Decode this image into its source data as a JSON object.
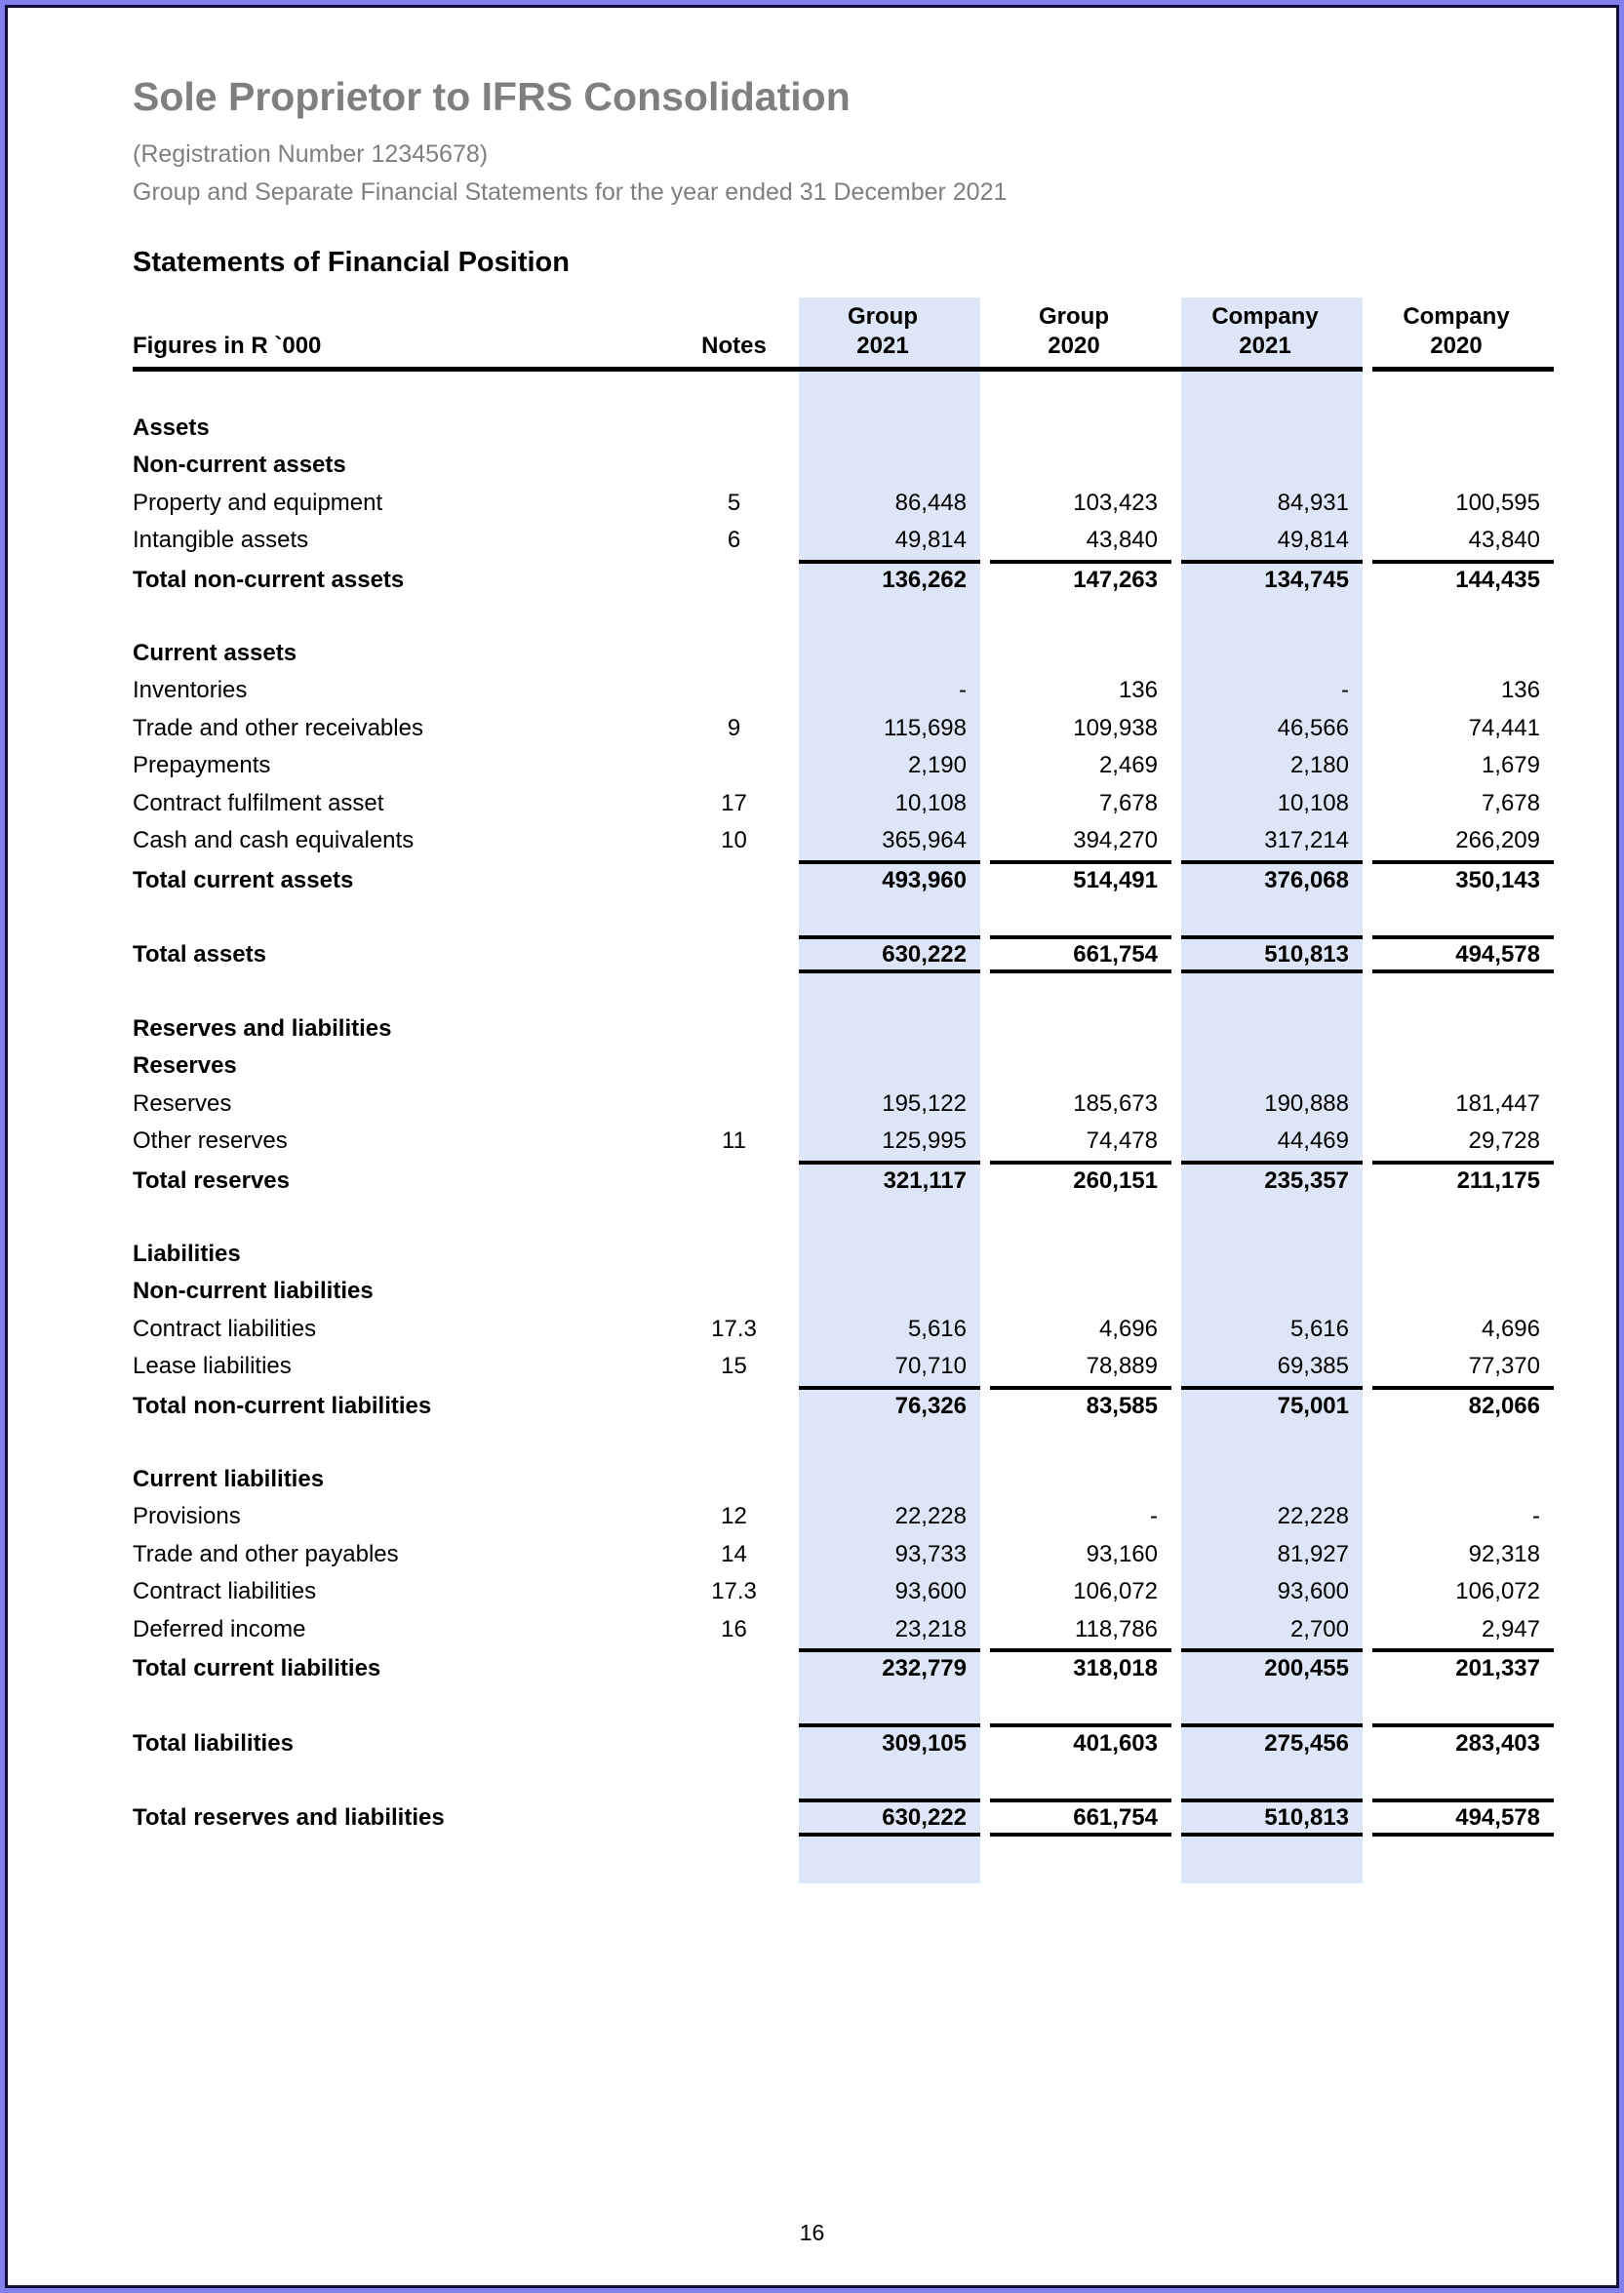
{
  "page": {
    "title": "Sole Proprietor to IFRS Consolidation",
    "registration": "(Registration Number 12345678)",
    "subtitle": "Group and Separate Financial Statements for the year ended 31 December 2021",
    "section_heading": "Statements of Financial Position",
    "page_number": "16"
  },
  "table": {
    "figures_label": "Figures in R `000",
    "notes_label": "Notes",
    "column_groups": [
      "Group",
      "Group",
      "Company",
      "Company"
    ],
    "column_years": [
      "2021",
      "2020",
      "2021",
      "2020"
    ],
    "rows": [
      {
        "t": "spacer"
      },
      {
        "t": "heading",
        "label": "Assets"
      },
      {
        "t": "heading",
        "label": "Non-current assets"
      },
      {
        "t": "item",
        "label": "Property and equipment",
        "note": "5",
        "v": [
          "86,448",
          "103,423",
          "84,931",
          "100,595"
        ]
      },
      {
        "t": "item",
        "label": "Intangible assets",
        "note": "6",
        "v": [
          "49,814",
          "43,840",
          "49,814",
          "43,840"
        ]
      },
      {
        "t": "total",
        "label": "Total non-current assets",
        "note": "",
        "v": [
          "136,262",
          "147,263",
          "134,745",
          "144,435"
        ]
      },
      {
        "t": "spacer"
      },
      {
        "t": "heading",
        "label": "Current assets"
      },
      {
        "t": "item",
        "label": "Inventories",
        "note": "",
        "v": [
          "-",
          "136",
          "-",
          "136"
        ]
      },
      {
        "t": "item",
        "label": "Trade and other receivables",
        "note": "9",
        "v": [
          "115,698",
          "109,938",
          "46,566",
          "74,441"
        ]
      },
      {
        "t": "item",
        "label": "Prepayments",
        "note": "",
        "v": [
          "2,190",
          "2,469",
          "2,180",
          "1,679"
        ]
      },
      {
        "t": "item",
        "label": "Contract fulfilment asset",
        "note": "17",
        "v": [
          "10,108",
          "7,678",
          "10,108",
          "7,678"
        ]
      },
      {
        "t": "item",
        "label": "Cash and cash equivalents",
        "note": "10",
        "v": [
          "365,964",
          "394,270",
          "317,214",
          "266,209"
        ]
      },
      {
        "t": "total",
        "label": "Total current assets",
        "note": "",
        "v": [
          "493,960",
          "514,491",
          "376,068",
          "350,143"
        ]
      },
      {
        "t": "spacer"
      },
      {
        "t": "grand",
        "label": "Total assets",
        "note": "",
        "v": [
          "630,222",
          "661,754",
          "510,813",
          "494,578"
        ]
      },
      {
        "t": "spacer"
      },
      {
        "t": "heading",
        "label": "Reserves and liabilities"
      },
      {
        "t": "heading",
        "label": "Reserves"
      },
      {
        "t": "item",
        "label": "Reserves",
        "note": "",
        "v": [
          "195,122",
          "185,673",
          "190,888",
          "181,447"
        ]
      },
      {
        "t": "item",
        "label": "Other reserves",
        "note": "11",
        "v": [
          "125,995",
          "74,478",
          "44,469",
          "29,728"
        ]
      },
      {
        "t": "total",
        "label": "Total reserves",
        "note": "",
        "v": [
          "321,117",
          "260,151",
          "235,357",
          "211,175"
        ]
      },
      {
        "t": "spacer"
      },
      {
        "t": "heading",
        "label": "Liabilities"
      },
      {
        "t": "heading",
        "label": "Non-current liabilities"
      },
      {
        "t": "item",
        "label": "Contract liabilities",
        "note": "17.3",
        "v": [
          "5,616",
          "4,696",
          "5,616",
          "4,696"
        ]
      },
      {
        "t": "item",
        "label": "Lease liabilities",
        "note": "15",
        "v": [
          "70,710",
          "78,889",
          "69,385",
          "77,370"
        ]
      },
      {
        "t": "total",
        "label": "Total non-current liabilities",
        "note": "",
        "v": [
          "76,326",
          "83,585",
          "75,001",
          "82,066"
        ]
      },
      {
        "t": "spacer"
      },
      {
        "t": "heading",
        "label": "Current liabilities"
      },
      {
        "t": "item",
        "label": "Provisions",
        "note": "12",
        "v": [
          "22,228",
          "-",
          "22,228",
          "-"
        ]
      },
      {
        "t": "item",
        "label": "Trade and other payables",
        "note": "14",
        "v": [
          "93,733",
          "93,160",
          "81,927",
          "92,318"
        ]
      },
      {
        "t": "item",
        "label": "Contract liabilities",
        "note": "17.3",
        "v": [
          "93,600",
          "106,072",
          "93,600",
          "106,072"
        ]
      },
      {
        "t": "item",
        "label": "Deferred income",
        "note": "16",
        "v": [
          "23,218",
          "118,786",
          "2,700",
          "2,947"
        ]
      },
      {
        "t": "total",
        "label": "Total current liabilities",
        "note": "",
        "v": [
          "232,779",
          "318,018",
          "200,455",
          "201,337"
        ]
      },
      {
        "t": "spacer"
      },
      {
        "t": "total",
        "label": "Total liabilities",
        "note": "",
        "v": [
          "309,105",
          "401,603",
          "275,456",
          "283,403"
        ]
      },
      {
        "t": "spacer"
      },
      {
        "t": "grand",
        "label": "Total reserves and liabilities",
        "note": "",
        "v": [
          "630,222",
          "661,754",
          "510,813",
          "494,578"
        ]
      }
    ]
  },
  "colors": {
    "band": "#dce6f7",
    "page_border_outer": "#8280ed",
    "page_border_inner": "#10103a",
    "muted_text": "#7f7f7f",
    "rule": "#000000"
  }
}
